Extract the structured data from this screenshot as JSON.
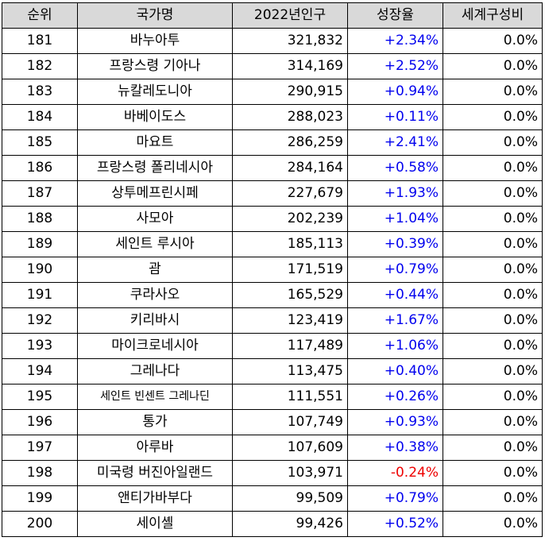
{
  "table": {
    "headers": [
      "순위",
      "국가명",
      "2022년인구",
      "성장율",
      "세계구성비"
    ],
    "rows": [
      {
        "rank": "181",
        "name": "바누아투",
        "pop": "321,832",
        "growth": "+2.34%",
        "share": "0.0%"
      },
      {
        "rank": "182",
        "name": "프랑스령 기아나",
        "pop": "314,169",
        "growth": "+2.52%",
        "share": "0.0%"
      },
      {
        "rank": "183",
        "name": "뉴칼레도니아",
        "pop": "290,915",
        "growth": "+0.94%",
        "share": "0.0%"
      },
      {
        "rank": "184",
        "name": "바베이도스",
        "pop": "288,023",
        "growth": "+0.11%",
        "share": "0.0%"
      },
      {
        "rank": "185",
        "name": "마요트",
        "pop": "286,259",
        "growth": "+2.41%",
        "share": "0.0%"
      },
      {
        "rank": "186",
        "name": "프랑스령 폴리네시아",
        "pop": "284,164",
        "growth": "+0.58%",
        "share": "0.0%"
      },
      {
        "rank": "187",
        "name": "상투메프린시페",
        "pop": "227,679",
        "growth": "+1.93%",
        "share": "0.0%"
      },
      {
        "rank": "188",
        "name": "사모아",
        "pop": "202,239",
        "growth": "+1.04%",
        "share": "0.0%"
      },
      {
        "rank": "189",
        "name": "세인트 루시아",
        "pop": "185,113",
        "growth": "+0.39%",
        "share": "0.0%"
      },
      {
        "rank": "190",
        "name": "괌",
        "pop": "171,519",
        "growth": "+0.79%",
        "share": "0.0%"
      },
      {
        "rank": "191",
        "name": "쿠라사오",
        "pop": "165,529",
        "growth": "+0.44%",
        "share": "0.0%"
      },
      {
        "rank": "192",
        "name": "키리바시",
        "pop": "123,419",
        "growth": "+1.67%",
        "share": "0.0%"
      },
      {
        "rank": "193",
        "name": "마이크로네시아",
        "pop": "117,489",
        "growth": "+1.06%",
        "share": "0.0%"
      },
      {
        "rank": "194",
        "name": "그레나다",
        "pop": "113,475",
        "growth": "+0.40%",
        "share": "0.0%"
      },
      {
        "rank": "195",
        "name": "세인트 빈센트 그레나딘",
        "pop": "111,551",
        "growth": "+0.26%",
        "share": "0.0%"
      },
      {
        "rank": "196",
        "name": "통가",
        "pop": "107,749",
        "growth": "+0.93%",
        "share": "0.0%"
      },
      {
        "rank": "197",
        "name": "아루바",
        "pop": "107,609",
        "growth": "+0.38%",
        "share": "0.0%"
      },
      {
        "rank": "198",
        "name": "미국령 버진아일랜드",
        "pop": "103,971",
        "growth": "-0.24%",
        "share": "0.0%"
      },
      {
        "rank": "199",
        "name": "앤티가바부다",
        "pop": "99,509",
        "growth": "+0.79%",
        "share": "0.0%"
      },
      {
        "rank": "200",
        "name": "세이셸",
        "pop": "99,426",
        "growth": "+0.52%",
        "share": "0.0%"
      }
    ]
  },
  "colors": {
    "header_bg": "#d9d9d9",
    "positive": "#0000ee",
    "negative": "#ee0000"
  }
}
